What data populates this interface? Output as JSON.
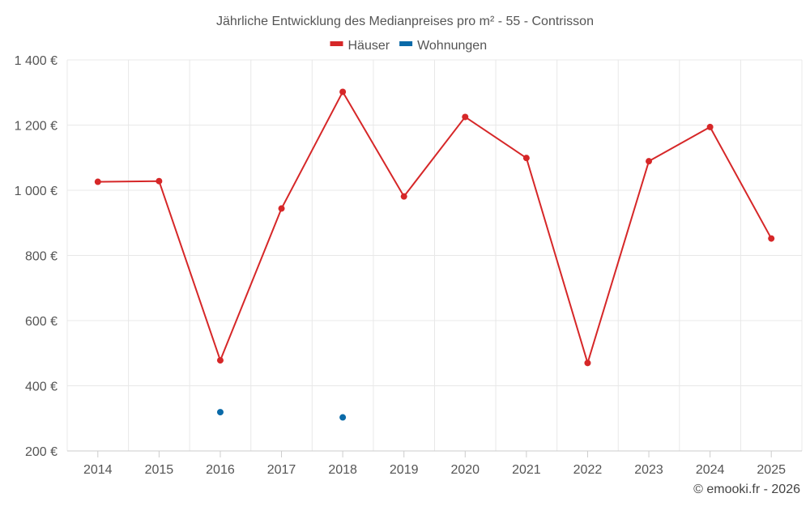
{
  "chart_data": {
    "type": "line",
    "title": "Jährliche Entwicklung des Medianpreises pro m² - 55 - Contrisson",
    "categories": [
      "2014",
      "2015",
      "2016",
      "2017",
      "2018",
      "2019",
      "2020",
      "2021",
      "2022",
      "2023",
      "2024",
      "2025"
    ],
    "y_ticks": [
      "200 €",
      "400 €",
      "600 €",
      "800 €",
      "1 000 €",
      "1 200 €",
      "1 400 €"
    ],
    "ylim": [
      200,
      1400
    ],
    "grid": true,
    "legend_position": "top-center",
    "series": [
      {
        "name": "Häuser",
        "color": "#d62728",
        "values": [
          1026,
          1028,
          478,
          944,
          1302,
          981,
          1225,
          1099,
          470,
          1089,
          1194,
          852
        ]
      },
      {
        "name": "Wohnungen",
        "color": "#0a6aa8",
        "values": [
          null,
          null,
          319,
          null,
          303,
          null,
          null,
          null,
          null,
          null,
          null,
          null
        ]
      }
    ],
    "credit": "© emooki.fr - 2026"
  }
}
